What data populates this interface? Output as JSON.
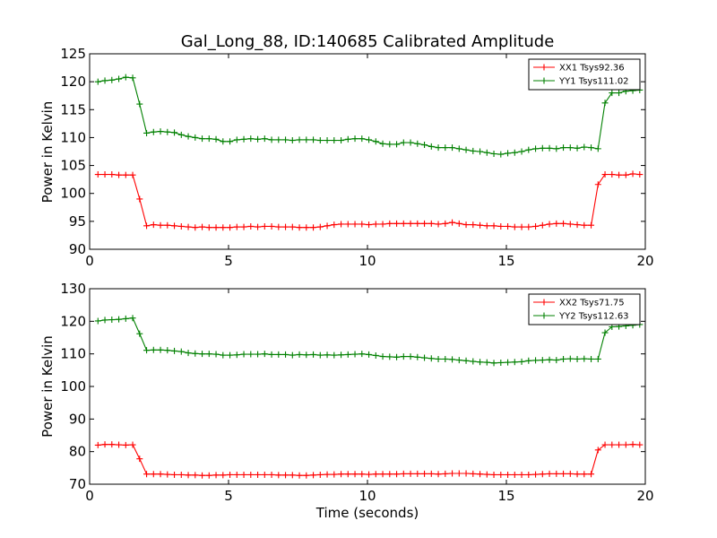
{
  "chart_data": [
    {
      "type": "line",
      "title": "Gal_Long_88, ID:140685 Calibrated Amplitude",
      "xlabel": "",
      "ylabel": "Power in Kelvin",
      "xlim": [
        0,
        20
      ],
      "ylim": [
        90,
        125
      ],
      "xticks": [
        0,
        5,
        10,
        15,
        20
      ],
      "yticks": [
        90,
        95,
        100,
        105,
        110,
        115,
        120,
        125
      ],
      "grid": false,
      "legend": "top-right",
      "x": [
        0.3,
        0.55,
        0.8,
        1.05,
        1.3,
        1.55,
        1.8,
        2.05,
        2.3,
        2.55,
        2.8,
        3.05,
        3.3,
        3.55,
        3.8,
        4.05,
        4.3,
        4.55,
        4.8,
        5.05,
        5.3,
        5.55,
        5.8,
        6.05,
        6.3,
        6.55,
        6.8,
        7.05,
        7.3,
        7.55,
        7.8,
        8.05,
        8.3,
        8.55,
        8.8,
        9.05,
        9.3,
        9.55,
        9.8,
        10.05,
        10.3,
        10.55,
        10.8,
        11.05,
        11.3,
        11.55,
        11.8,
        12.05,
        12.3,
        12.55,
        12.8,
        13.05,
        13.3,
        13.55,
        13.8,
        14.05,
        14.3,
        14.55,
        14.8,
        15.05,
        15.3,
        15.55,
        15.8,
        16.05,
        16.3,
        16.55,
        16.8,
        17.05,
        17.3,
        17.55,
        17.8,
        18.05,
        18.3,
        18.55,
        18.8,
        19.05,
        19.3,
        19.55,
        19.8
      ],
      "series": [
        {
          "name": "XX1 Tsys92.36",
          "color": "#ff0000",
          "values": [
            103.4,
            103.4,
            103.4,
            103.3,
            103.3,
            103.3,
            99.0,
            94.2,
            94.4,
            94.3,
            94.3,
            94.2,
            94.1,
            94.0,
            93.9,
            94.0,
            93.9,
            93.9,
            93.9,
            93.9,
            94.0,
            94.0,
            94.1,
            94.0,
            94.1,
            94.1,
            94.0,
            94.0,
            94.0,
            93.9,
            93.9,
            93.9,
            94.0,
            94.2,
            94.4,
            94.5,
            94.5,
            94.5,
            94.5,
            94.4,
            94.5,
            94.5,
            94.6,
            94.6,
            94.6,
            94.6,
            94.6,
            94.6,
            94.6,
            94.5,
            94.6,
            94.8,
            94.6,
            94.4,
            94.4,
            94.3,
            94.2,
            94.2,
            94.1,
            94.1,
            94.0,
            94.0,
            94.0,
            94.1,
            94.3,
            94.5,
            94.6,
            94.6,
            94.5,
            94.4,
            94.3,
            94.3,
            101.6,
            103.4,
            103.4,
            103.3,
            103.3,
            103.5,
            103.4
          ]
        },
        {
          "name": "YY1 Tsys111.02",
          "color": "#008000",
          "values": [
            120.0,
            120.2,
            120.3,
            120.5,
            120.8,
            120.7,
            116.0,
            110.8,
            111.0,
            111.1,
            111.0,
            110.9,
            110.5,
            110.2,
            110.0,
            109.8,
            109.8,
            109.7,
            109.3,
            109.3,
            109.6,
            109.7,
            109.8,
            109.7,
            109.8,
            109.6,
            109.6,
            109.6,
            109.5,
            109.6,
            109.6,
            109.6,
            109.5,
            109.5,
            109.5,
            109.5,
            109.7,
            109.8,
            109.8,
            109.6,
            109.3,
            108.9,
            108.8,
            108.8,
            109.1,
            109.1,
            108.9,
            108.7,
            108.4,
            108.2,
            108.2,
            108.2,
            108.0,
            107.8,
            107.6,
            107.5,
            107.3,
            107.1,
            107.0,
            107.2,
            107.3,
            107.5,
            107.8,
            108.0,
            108.1,
            108.1,
            108.0,
            108.2,
            108.2,
            108.1,
            108.3,
            108.2,
            108.0,
            116.2,
            118.0,
            118.0,
            118.3,
            118.4,
            118.5
          ]
        }
      ]
    },
    {
      "type": "line",
      "title": "",
      "xlabel": "Time (seconds)",
      "ylabel": "Power in Kelvin",
      "xlim": [
        0,
        20
      ],
      "ylim": [
        70,
        130
      ],
      "xticks": [
        0,
        5,
        10,
        15,
        20
      ],
      "yticks": [
        70,
        80,
        90,
        100,
        110,
        120,
        130
      ],
      "grid": false,
      "legend": "top-right",
      "x": [
        0.3,
        0.55,
        0.8,
        1.05,
        1.3,
        1.55,
        1.8,
        2.05,
        2.3,
        2.55,
        2.8,
        3.05,
        3.3,
        3.55,
        3.8,
        4.05,
        4.3,
        4.55,
        4.8,
        5.05,
        5.3,
        5.55,
        5.8,
        6.05,
        6.3,
        6.55,
        6.8,
        7.05,
        7.3,
        7.55,
        7.8,
        8.05,
        8.3,
        8.55,
        8.8,
        9.05,
        9.3,
        9.55,
        9.8,
        10.05,
        10.3,
        10.55,
        10.8,
        11.05,
        11.3,
        11.55,
        11.8,
        12.05,
        12.3,
        12.55,
        12.8,
        13.05,
        13.3,
        13.55,
        13.8,
        14.05,
        14.3,
        14.55,
        14.8,
        15.05,
        15.3,
        15.55,
        15.8,
        16.05,
        16.3,
        16.55,
        16.8,
        17.05,
        17.3,
        17.55,
        17.8,
        18.05,
        18.3,
        18.55,
        18.8,
        19.05,
        19.3,
        19.55,
        19.8
      ],
      "series": [
        {
          "name": "XX2 Tsys71.75",
          "color": "#ff0000",
          "values": [
            82.0,
            82.2,
            82.2,
            82.1,
            82.0,
            82.1,
            77.8,
            73.1,
            73.1,
            73.1,
            73.0,
            72.9,
            72.9,
            72.8,
            72.8,
            72.7,
            72.7,
            72.8,
            72.8,
            72.9,
            72.9,
            72.9,
            72.9,
            72.9,
            72.9,
            72.9,
            72.8,
            72.8,
            72.8,
            72.7,
            72.7,
            72.8,
            72.9,
            73.0,
            73.0,
            73.1,
            73.1,
            73.1,
            73.1,
            73.0,
            73.1,
            73.1,
            73.1,
            73.1,
            73.2,
            73.2,
            73.2,
            73.2,
            73.2,
            73.1,
            73.2,
            73.3,
            73.3,
            73.3,
            73.2,
            73.1,
            73.0,
            72.9,
            72.9,
            72.9,
            72.9,
            72.9,
            72.9,
            73.0,
            73.1,
            73.2,
            73.2,
            73.2,
            73.2,
            73.1,
            73.1,
            73.1,
            80.5,
            82.1,
            82.1,
            82.1,
            82.1,
            82.2,
            82.1
          ]
        },
        {
          "name": "YY2 Tsys112.63",
          "color": "#008000",
          "values": [
            120.1,
            120.4,
            120.5,
            120.6,
            120.8,
            121.0,
            116.2,
            111.1,
            111.2,
            111.2,
            111.1,
            110.9,
            110.7,
            110.3,
            110.1,
            110.0,
            110.0,
            109.9,
            109.6,
            109.6,
            109.7,
            109.9,
            109.9,
            109.9,
            110.0,
            109.8,
            109.8,
            109.8,
            109.6,
            109.8,
            109.7,
            109.8,
            109.6,
            109.7,
            109.6,
            109.7,
            109.8,
            109.9,
            110.0,
            109.8,
            109.5,
            109.2,
            109.1,
            109.0,
            109.2,
            109.2,
            109.0,
            108.8,
            108.6,
            108.4,
            108.4,
            108.3,
            108.1,
            107.9,
            107.7,
            107.5,
            107.4,
            107.2,
            107.3,
            107.4,
            107.5,
            107.6,
            107.9,
            108.0,
            108.1,
            108.2,
            108.1,
            108.4,
            108.5,
            108.4,
            108.5,
            108.4,
            108.4,
            116.5,
            118.3,
            118.4,
            118.6,
            118.8,
            119.0
          ]
        }
      ]
    }
  ]
}
